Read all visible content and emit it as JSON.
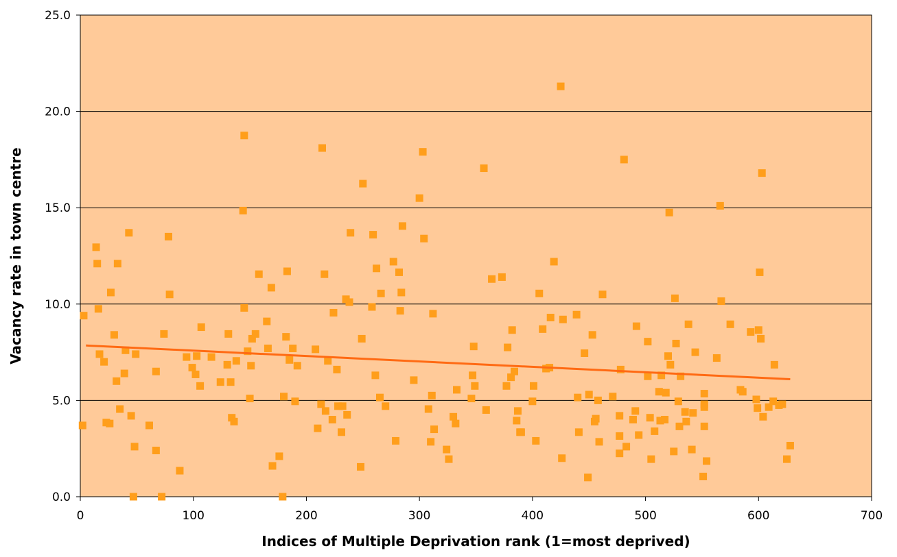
{
  "colors": {
    "plot_background": "#FFCA99",
    "marker": "#FF9E1B",
    "trendline": "#FF6A13",
    "gridline": "#000000"
  },
  "chart_data": {
    "type": "scatter",
    "title": "",
    "xlabel": "Indices of Multiple Deprivation rank (1=most deprived)",
    "ylabel": "Vacancy rate in town centre",
    "xlim": [
      0,
      700
    ],
    "ylim": [
      0,
      25
    ],
    "x_ticks": [
      "0",
      "100",
      "200",
      "300",
      "400",
      "500",
      "600",
      "700"
    ],
    "y_ticks": [
      "0.0",
      "5.0",
      "10.0",
      "15.0",
      "20.0",
      "25.0"
    ],
    "grid": "horizontal",
    "legend": "none",
    "marker_shape": "square",
    "trendline": {
      "type": "linear",
      "x": [
        5,
        628
      ],
      "y": [
        7.85,
        6.1
      ]
    },
    "points": [
      [
        2,
        3.7
      ],
      [
        3,
        9.4
      ],
      [
        14,
        12.95
      ],
      [
        15,
        12.1
      ],
      [
        16,
        9.75
      ],
      [
        17,
        7.4
      ],
      [
        21,
        7.0
      ],
      [
        23,
        3.85
      ],
      [
        26,
        3.8
      ],
      [
        27,
        10.6
      ],
      [
        30,
        8.4
      ],
      [
        32,
        6.0
      ],
      [
        33,
        12.1
      ],
      [
        35,
        4.55
      ],
      [
        39,
        6.4
      ],
      [
        40,
        7.6
      ],
      [
        43,
        13.7
      ],
      [
        45,
        4.2
      ],
      [
        47,
        0.0
      ],
      [
        48,
        2.6
      ],
      [
        49,
        7.4
      ],
      [
        61,
        3.7
      ],
      [
        67,
        6.5
      ],
      [
        67,
        2.4
      ],
      [
        72,
        0.0
      ],
      [
        74,
        8.45
      ],
      [
        78,
        13.5
      ],
      [
        79,
        10.5
      ],
      [
        88,
        1.35
      ],
      [
        94,
        7.25
      ],
      [
        99,
        6.7
      ],
      [
        102,
        6.35
      ],
      [
        103,
        7.3
      ],
      [
        106,
        5.75
      ],
      [
        107,
        8.8
      ],
      [
        116,
        7.25
      ],
      [
        124,
        5.95
      ],
      [
        130,
        6.85
      ],
      [
        131,
        8.45
      ],
      [
        133,
        5.95
      ],
      [
        134,
        4.1
      ],
      [
        136,
        3.9
      ],
      [
        138,
        7.05
      ],
      [
        144,
        14.85
      ],
      [
        145,
        18.75
      ],
      [
        145,
        9.8
      ],
      [
        148,
        7.55
      ],
      [
        150,
        5.1
      ],
      [
        151,
        6.8
      ],
      [
        152,
        8.2
      ],
      [
        155,
        8.45
      ],
      [
        158,
        11.55
      ],
      [
        165,
        9.1
      ],
      [
        166,
        7.7
      ],
      [
        169,
        10.85
      ],
      [
        170,
        1.6
      ],
      [
        176,
        2.1
      ],
      [
        179,
        0.0
      ],
      [
        180,
        5.2
      ],
      [
        182,
        8.3
      ],
      [
        183,
        11.7
      ],
      [
        185,
        7.1
      ],
      [
        188,
        7.7
      ],
      [
        190,
        4.95
      ],
      [
        192,
        6.8
      ],
      [
        208,
        7.65
      ],
      [
        210,
        3.55
      ],
      [
        213,
        4.8
      ],
      [
        214,
        18.1
      ],
      [
        216,
        11.55
      ],
      [
        217,
        4.45
      ],
      [
        219,
        7.05
      ],
      [
        223,
        4.0
      ],
      [
        224,
        9.55
      ],
      [
        227,
        6.6
      ],
      [
        228,
        4.7
      ],
      [
        231,
        3.35
      ],
      [
        232,
        4.7
      ],
      [
        235,
        10.25
      ],
      [
        236,
        4.25
      ],
      [
        238,
        10.1
      ],
      [
        239,
        13.7
      ],
      [
        248,
        1.55
      ],
      [
        249,
        8.2
      ],
      [
        250,
        16.25
      ],
      [
        258,
        9.85
      ],
      [
        259,
        13.6
      ],
      [
        261,
        6.3
      ],
      [
        262,
        11.85
      ],
      [
        265,
        5.15
      ],
      [
        266,
        10.55
      ],
      [
        270,
        4.7
      ],
      [
        277,
        12.2
      ],
      [
        279,
        2.9
      ],
      [
        282,
        11.65
      ],
      [
        283,
        9.65
      ],
      [
        284,
        10.6
      ],
      [
        285,
        14.05
      ],
      [
        295,
        6.05
      ],
      [
        300,
        15.5
      ],
      [
        303,
        17.9
      ],
      [
        304,
        13.4
      ],
      [
        308,
        4.55
      ],
      [
        310,
        2.85
      ],
      [
        311,
        5.25
      ],
      [
        312,
        9.5
      ],
      [
        313,
        3.5
      ],
      [
        324,
        2.45
      ],
      [
        326,
        1.95
      ],
      [
        330,
        4.15
      ],
      [
        332,
        3.8
      ],
      [
        333,
        5.55
      ],
      [
        346,
        5.1
      ],
      [
        347,
        6.3
      ],
      [
        348,
        7.8
      ],
      [
        349,
        5.75
      ],
      [
        357,
        17.05
      ],
      [
        359,
        4.5
      ],
      [
        364,
        11.3
      ],
      [
        373,
        11.4
      ],
      [
        377,
        5.75
      ],
      [
        378,
        7.75
      ],
      [
        381,
        6.2
      ],
      [
        382,
        8.65
      ],
      [
        384,
        6.5
      ],
      [
        386,
        3.95
      ],
      [
        387,
        4.45
      ],
      [
        389,
        3.35
      ],
      [
        390,
        3.35
      ],
      [
        400,
        4.95
      ],
      [
        401,
        5.75
      ],
      [
        403,
        2.9
      ],
      [
        406,
        10.55
      ],
      [
        409,
        8.7
      ],
      [
        412,
        6.65
      ],
      [
        415,
        6.7
      ],
      [
        416,
        9.3
      ],
      [
        419,
        12.2
      ],
      [
        425,
        21.3
      ],
      [
        426,
        2.0
      ],
      [
        427,
        9.2
      ],
      [
        439,
        9.45
      ],
      [
        440,
        5.15
      ],
      [
        441,
        3.35
      ],
      [
        446,
        7.45
      ],
      [
        449,
        1.0
      ],
      [
        450,
        5.3
      ],
      [
        453,
        8.4
      ],
      [
        455,
        3.9
      ],
      [
        456,
        4.05
      ],
      [
        458,
        5.0
      ],
      [
        459,
        2.85
      ],
      [
        462,
        10.5
      ],
      [
        471,
        5.2
      ],
      [
        477,
        2.25
      ],
      [
        477,
        3.15
      ],
      [
        477,
        4.2
      ],
      [
        478,
        6.6
      ],
      [
        481,
        17.5
      ],
      [
        483,
        2.6
      ],
      [
        489,
        4.0
      ],
      [
        491,
        4.45
      ],
      [
        492,
        8.85
      ],
      [
        494,
        3.2
      ],
      [
        502,
        8.05
      ],
      [
        502,
        6.25
      ],
      [
        504,
        4.1
      ],
      [
        505,
        1.95
      ],
      [
        508,
        3.4
      ],
      [
        512,
        5.45
      ],
      [
        513,
        3.95
      ],
      [
        514,
        6.3
      ],
      [
        517,
        4.0
      ],
      [
        518,
        5.4
      ],
      [
        520,
        7.3
      ],
      [
        521,
        14.75
      ],
      [
        522,
        6.85
      ],
      [
        525,
        2.35
      ],
      [
        526,
        10.3
      ],
      [
        527,
        7.95
      ],
      [
        529,
        4.95
      ],
      [
        530,
        3.65
      ],
      [
        531,
        6.25
      ],
      [
        535,
        4.4
      ],
      [
        536,
        3.9
      ],
      [
        538,
        8.95
      ],
      [
        541,
        2.45
      ],
      [
        542,
        4.35
      ],
      [
        544,
        7.5
      ],
      [
        551,
        1.05
      ],
      [
        552,
        3.65
      ],
      [
        552,
        4.65
      ],
      [
        552,
        4.8
      ],
      [
        552,
        5.35
      ],
      [
        554,
        1.85
      ],
      [
        563,
        7.2
      ],
      [
        566,
        15.1
      ],
      [
        567,
        10.15
      ],
      [
        575,
        8.95
      ],
      [
        584,
        5.55
      ],
      [
        586,
        5.45
      ],
      [
        593,
        8.55
      ],
      [
        598,
        5.05
      ],
      [
        599,
        4.6
      ],
      [
        600,
        8.65
      ],
      [
        601,
        11.65
      ],
      [
        602,
        8.2
      ],
      [
        603,
        16.8
      ],
      [
        604,
        4.15
      ],
      [
        609,
        4.65
      ],
      [
        613,
        4.95
      ],
      [
        614,
        6.85
      ],
      [
        618,
        4.75
      ],
      [
        621,
        4.8
      ],
      [
        625,
        1.95
      ],
      [
        628,
        2.65
      ]
    ]
  }
}
